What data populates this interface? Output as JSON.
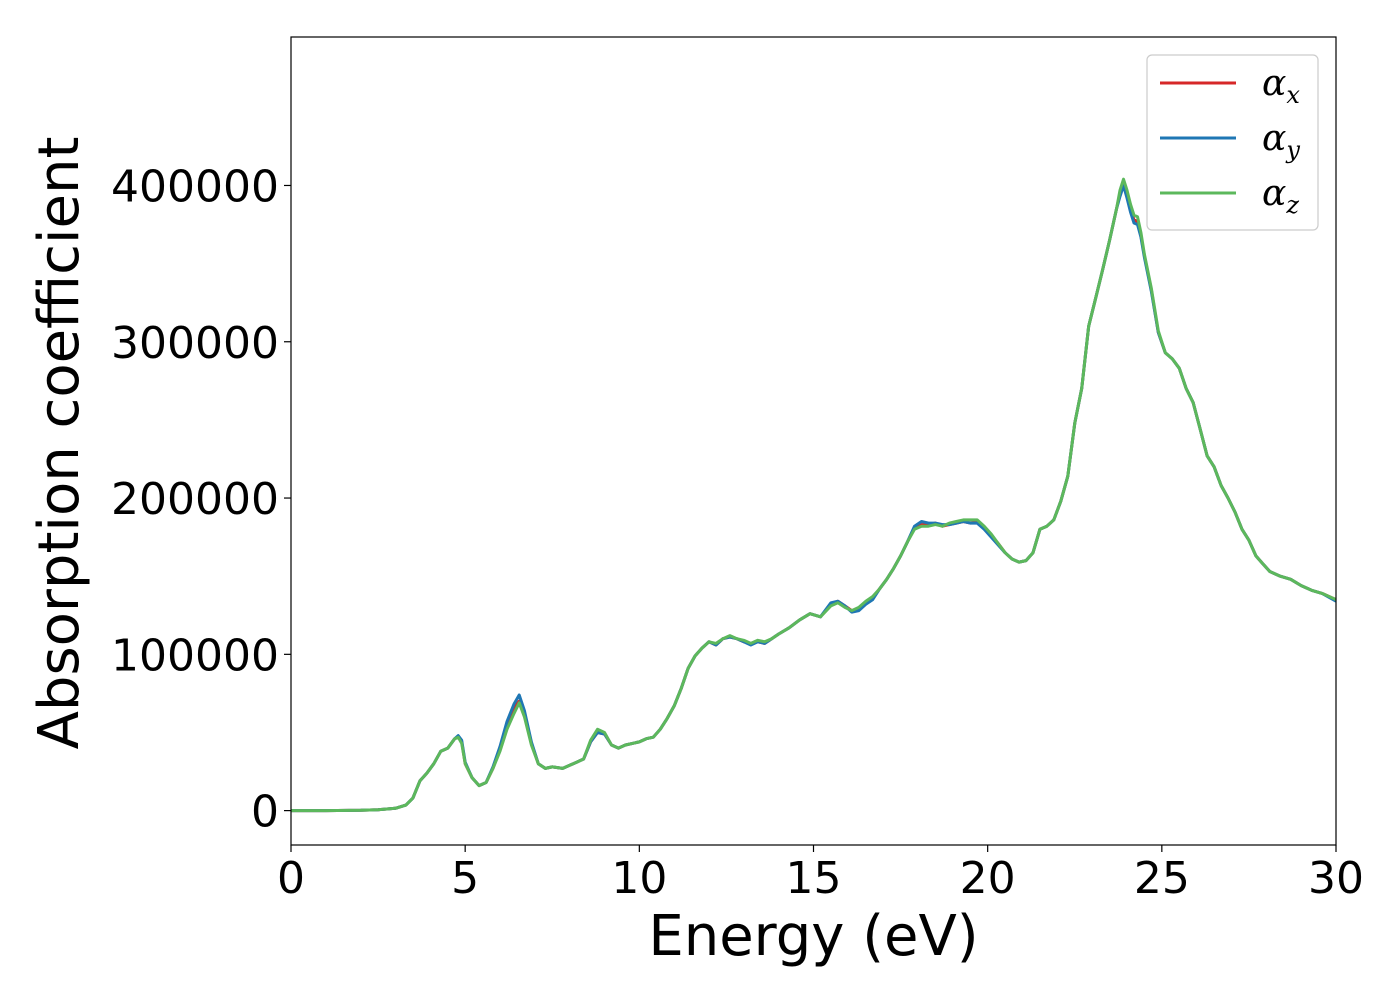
{
  "chart_data": {
    "type": "line",
    "xlabel": "Energy (eV)",
    "ylabel": "Absorption coefficient",
    "xlim": [
      0,
      30
    ],
    "ylim": [
      -22000,
      495000
    ],
    "xticks": [
      "0",
      "5",
      "10",
      "15",
      "20",
      "25",
      "30"
    ],
    "yticks": [
      "0",
      "100000",
      "200000",
      "300000",
      "400000"
    ],
    "grid": false,
    "legend_position": "top-right",
    "x": [
      0,
      1,
      2,
      2.5,
      3,
      3.3,
      3.5,
      3.7,
      3.9,
      4.1,
      4.3,
      4.5,
      4.7,
      4.8,
      4.9,
      5.0,
      5.2,
      5.4,
      5.6,
      5.8,
      6.0,
      6.2,
      6.4,
      6.55,
      6.7,
      6.9,
      7.1,
      7.3,
      7.5,
      7.8,
      8.0,
      8.2,
      8.4,
      8.6,
      8.8,
      9.0,
      9.2,
      9.4,
      9.6,
      9.8,
      10.0,
      10.2,
      10.4,
      10.6,
      10.8,
      11.0,
      11.2,
      11.4,
      11.6,
      11.8,
      12.0,
      12.2,
      12.4,
      12.6,
      12.8,
      13.0,
      13.2,
      13.4,
      13.6,
      13.8,
      14.0,
      14.3,
      14.6,
      14.9,
      15.2,
      15.5,
      15.7,
      15.9,
      16.1,
      16.3,
      16.5,
      16.7,
      16.9,
      17.1,
      17.3,
      17.5,
      17.7,
      17.9,
      18.1,
      18.3,
      18.5,
      18.7,
      18.9,
      19.1,
      19.3,
      19.5,
      19.7,
      19.9,
      20.1,
      20.3,
      20.5,
      20.7,
      20.9,
      21.1,
      21.3,
      21.5,
      21.7,
      21.9,
      22.1,
      22.3,
      22.5,
      22.7,
      22.9,
      23.1,
      23.3,
      23.5,
      23.7,
      23.8,
      23.9,
      24.0,
      24.1,
      24.2,
      24.3,
      24.4,
      24.5,
      24.7,
      24.9,
      25.1,
      25.3,
      25.5,
      25.7,
      25.9,
      26.1,
      26.3,
      26.5,
      26.7,
      26.9,
      27.1,
      27.3,
      27.5,
      27.7,
      27.9,
      28.1,
      28.4,
      28.7,
      29.0,
      29.3,
      29.6,
      30.0
    ],
    "series": [
      {
        "name": "αx",
        "color": "#d62728",
        "values": [
          0,
          0,
          200,
          600,
          1500,
          3500,
          8000,
          19000,
          24000,
          30000,
          38000,
          40000,
          46000,
          47000,
          44000,
          30000,
          21000,
          16000,
          18000,
          27000,
          40000,
          55000,
          66000,
          70000,
          62000,
          43000,
          30000,
          27000,
          28000,
          27000,
          29000,
          31000,
          33000,
          44000,
          50000,
          49000,
          42000,
          40000,
          42000,
          43000,
          44000,
          46000,
          47000,
          52000,
          59000,
          67000,
          78000,
          91000,
          99000,
          104000,
          108000,
          106000,
          110000,
          111000,
          110000,
          108000,
          107000,
          108000,
          107000,
          110000,
          113000,
          117000,
          122000,
          126000,
          124000,
          132000,
          134000,
          131000,
          128000,
          129000,
          133000,
          136000,
          142000,
          148000,
          155000,
          163000,
          172000,
          181000,
          183000,
          183000,
          184000,
          182000,
          183000,
          184000,
          185000,
          184000,
          185000,
          181000,
          176000,
          171000,
          165000,
          161000,
          159000,
          160000,
          165000,
          180000,
          182000,
          186000,
          198000,
          214000,
          248000,
          270000,
          310000,
          328000,
          346000,
          365000,
          385000,
          395000,
          402000,
          395000,
          385000,
          378000,
          377000,
          368000,
          355000,
          333000,
          306000,
          293000,
          289000,
          283000,
          270000,
          261000,
          244000,
          227000,
          220000,
          208000,
          200000,
          191000,
          180000,
          173000,
          163000,
          158000,
          153000,
          150000,
          148000,
          144000,
          141000,
          139000,
          135000
        ]
      },
      {
        "name": "αy",
        "color": "#1f77b4",
        "values": [
          0,
          0,
          200,
          600,
          1500,
          3500,
          8000,
          19000,
          24000,
          30000,
          38000,
          40000,
          46000,
          48000,
          45000,
          31000,
          21000,
          16000,
          18000,
          28000,
          41000,
          57000,
          68000,
          74000,
          64000,
          44000,
          30000,
          27000,
          28000,
          27000,
          29000,
          31000,
          33000,
          44000,
          50000,
          49000,
          42000,
          40000,
          42000,
          43000,
          44000,
          46000,
          47000,
          52000,
          59000,
          67000,
          78000,
          91000,
          99000,
          104000,
          108000,
          106000,
          110000,
          111000,
          110000,
          108000,
          106000,
          108000,
          107000,
          110000,
          113000,
          117000,
          122000,
          126000,
          124000,
          133000,
          134000,
          131000,
          127000,
          128000,
          132000,
          135000,
          142000,
          148000,
          155000,
          163000,
          172000,
          182000,
          185000,
          184000,
          184000,
          183000,
          183000,
          184000,
          185000,
          184000,
          184000,
          180000,
          175000,
          170000,
          165000,
          161000,
          159000,
          160000,
          165000,
          180000,
          182000,
          186000,
          198000,
          214000,
          248000,
          270000,
          310000,
          328000,
          346000,
          365000,
          385000,
          393000,
          400000,
          392000,
          383000,
          376000,
          375000,
          367000,
          354000,
          332000,
          306000,
          293000,
          289000,
          283000,
          270000,
          261000,
          244000,
          227000,
          220000,
          208000,
          200000,
          191000,
          180000,
          173000,
          163000,
          158000,
          153000,
          150000,
          148000,
          144000,
          141000,
          139000,
          134000
        ]
      },
      {
        "name": "αz",
        "color": "#5cb85c",
        "values": [
          0,
          0,
          200,
          600,
          1500,
          3500,
          8000,
          19000,
          24000,
          30000,
          38000,
          40000,
          46000,
          47000,
          43000,
          30000,
          21000,
          16000,
          18000,
          27000,
          38000,
          52000,
          62000,
          69000,
          60000,
          42000,
          30000,
          27000,
          28000,
          27000,
          29000,
          31000,
          33000,
          45000,
          52000,
          50000,
          42000,
          40000,
          42000,
          43000,
          44000,
          46000,
          47000,
          52000,
          59000,
          67000,
          78000,
          91000,
          99000,
          104000,
          108000,
          107000,
          110000,
          112000,
          110000,
          109000,
          107000,
          109000,
          108000,
          110000,
          113000,
          117000,
          122000,
          126000,
          124000,
          131000,
          133000,
          130000,
          128000,
          130000,
          134000,
          137000,
          142000,
          148000,
          155000,
          163000,
          172000,
          180000,
          182000,
          182000,
          183000,
          182000,
          184000,
          185000,
          186000,
          186000,
          186000,
          182000,
          177000,
          171000,
          165000,
          161000,
          159000,
          160000,
          165000,
          180000,
          182000,
          186000,
          198000,
          214000,
          248000,
          270000,
          310000,
          328000,
          346000,
          365000,
          385000,
          397000,
          404000,
          397000,
          388000,
          381000,
          380000,
          370000,
          356000,
          334000,
          307000,
          293000,
          289000,
          283000,
          270000,
          261000,
          244000,
          227000,
          220000,
          208000,
          200000,
          191000,
          180000,
          173000,
          163000,
          158000,
          153000,
          150000,
          148000,
          144000,
          141000,
          139000,
          135000
        ]
      }
    ]
  },
  "legend": {
    "items": [
      {
        "base": "α",
        "sub": "x"
      },
      {
        "base": "α",
        "sub": "y"
      },
      {
        "base": "α",
        "sub": "z"
      }
    ]
  }
}
